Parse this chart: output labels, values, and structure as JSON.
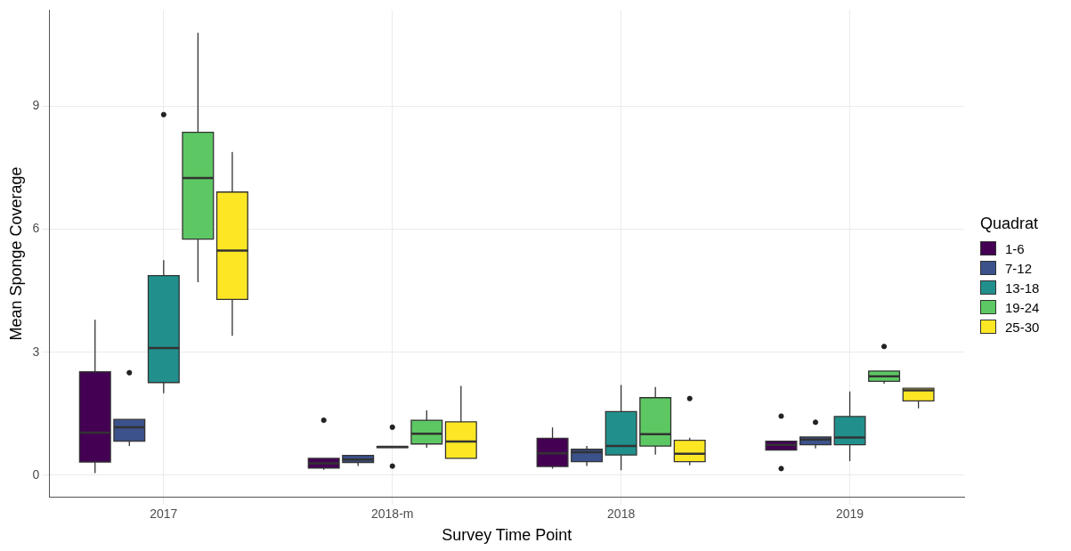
{
  "chart_data": {
    "type": "box",
    "xlabel": "Survey Time Point",
    "ylabel": "Mean Sponge Coverage",
    "legend_title": "Quadrat",
    "legend": "right",
    "grid": true,
    "categories": [
      "2017",
      "2018-m",
      "2018",
      "2019"
    ],
    "ylim": [
      -0.54,
      11.35
    ],
    "yticks": [
      0,
      3,
      6,
      9
    ],
    "series": [
      {
        "name": "1-6",
        "color": "#440154",
        "boxes": [
          {
            "low": 0.05,
            "q1": 0.32,
            "median": 1.04,
            "q3": 2.52,
            "high": 3.79
          },
          {
            "low": 0.13,
            "q1": 0.17,
            "median": 0.29,
            "q3": 0.41,
            "high": 0.41,
            "outliers": [
              1.34
            ]
          },
          {
            "low": 0.16,
            "q1": 0.21,
            "median": 0.53,
            "q3": 0.9,
            "high": 1.16
          },
          {
            "low": 0.61,
            "q1": 0.61,
            "median": 0.74,
            "q3": 0.83,
            "high": 0.83,
            "outliers": [
              1.44,
              0.16
            ]
          }
        ]
      },
      {
        "name": "7-12",
        "color": "#3b528b",
        "boxes": [
          {
            "low": 0.71,
            "q1": 0.83,
            "median": 1.17,
            "q3": 1.36,
            "high": 1.36,
            "outliers": [
              2.5
            ]
          },
          {
            "low": 0.22,
            "q1": 0.31,
            "median": 0.38,
            "q3": 0.48,
            "high": 0.48
          },
          {
            "low": 0.22,
            "q1": 0.33,
            "median": 0.56,
            "q3": 0.63,
            "high": 0.71
          },
          {
            "low": 0.65,
            "q1": 0.74,
            "median": 0.87,
            "q3": 0.93,
            "high": 0.93,
            "outliers": [
              1.29
            ]
          }
        ]
      },
      {
        "name": "13-18",
        "color": "#21908c",
        "boxes": [
          {
            "low": 2.0,
            "q1": 2.26,
            "median": 3.1,
            "q3": 4.87,
            "high": 5.25,
            "outliers": [
              8.8
            ]
          },
          {
            "low": 0.67,
            "q1": 0.67,
            "median": 0.69,
            "q3": 0.7,
            "high": 0.7,
            "outliers": [
              1.17,
              0.22
            ]
          },
          {
            "low": 0.12,
            "q1": 0.49,
            "median": 0.71,
            "q3": 1.55,
            "high": 2.2
          },
          {
            "low": 0.34,
            "q1": 0.74,
            "median": 0.92,
            "q3": 1.43,
            "high": 2.04
          }
        ]
      },
      {
        "name": "19-24",
        "color": "#5dc863",
        "boxes": [
          {
            "low": 4.71,
            "q1": 5.76,
            "median": 7.25,
            "q3": 8.37,
            "high": 10.8
          },
          {
            "low": 0.67,
            "q1": 0.76,
            "median": 1.01,
            "q3": 1.34,
            "high": 1.58
          },
          {
            "low": 0.5,
            "q1": 0.71,
            "median": 1.0,
            "q3": 1.89,
            "high": 2.15
          },
          {
            "low": 2.23,
            "q1": 2.29,
            "median": 2.41,
            "q3": 2.54,
            "high": 2.54,
            "outliers": [
              3.14
            ]
          }
        ]
      },
      {
        "name": "25-30",
        "color": "#fde725",
        "boxes": [
          {
            "low": 3.4,
            "q1": 4.29,
            "median": 5.48,
            "q3": 6.91,
            "high": 7.89
          },
          {
            "low": 0.41,
            "q1": 0.41,
            "median": 0.82,
            "q3": 1.3,
            "high": 2.18
          },
          {
            "low": 0.24,
            "q1": 0.33,
            "median": 0.52,
            "q3": 0.85,
            "high": 0.91,
            "outliers": [
              1.87
            ]
          },
          {
            "low": 1.63,
            "q1": 1.81,
            "median": 2.07,
            "q3": 2.12,
            "high": 2.12
          }
        ]
      }
    ]
  }
}
